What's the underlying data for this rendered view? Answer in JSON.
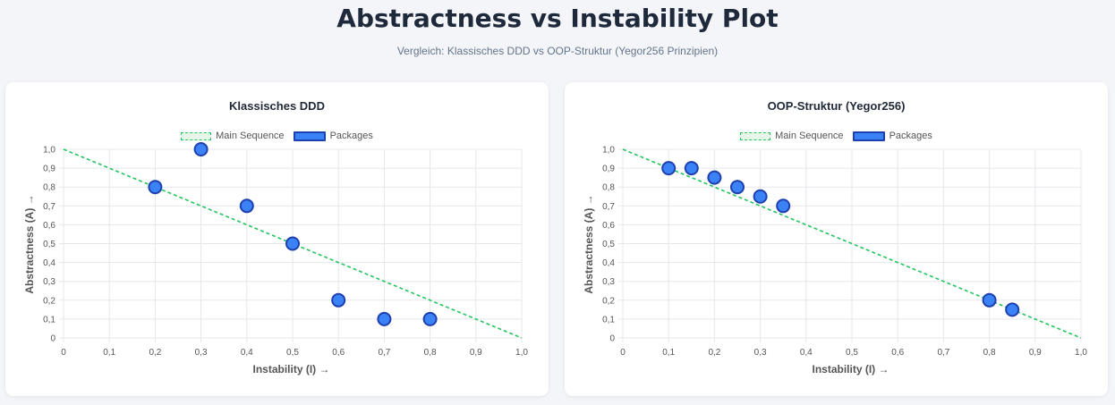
{
  "page": {
    "title": "Abstractness vs Instability Plot",
    "subtitle": "Vergleich: Klassisches DDD vs OOP-Struktur (Yegor256 Prinzipien)"
  },
  "colors": {
    "main_sequence": "#22c55e",
    "package_fill": "#3b82f6",
    "package_border": "#1e40af",
    "grid": "#e5e7eb"
  },
  "chart_data": [
    {
      "type": "scatter",
      "title": "Klassisches DDD",
      "xlabel": "Instability (I) →",
      "ylabel": "Abstractness (A) →",
      "xlim": [
        0,
        1
      ],
      "ylim": [
        0,
        1
      ],
      "x_ticks": [
        "0",
        "0,1",
        "0,2",
        "0,3",
        "0,4",
        "0,5",
        "0,6",
        "0,7",
        "0,8",
        "0,9",
        "1,0"
      ],
      "y_ticks": [
        "0",
        "0,1",
        "0,2",
        "0,3",
        "0,4",
        "0,5",
        "0,6",
        "0,7",
        "0,8",
        "0,9",
        "1,0"
      ],
      "grid": true,
      "legend_position": "top",
      "series": [
        {
          "name": "Main Sequence",
          "kind": "dashed-line",
          "x": [
            0,
            1
          ],
          "y": [
            1,
            0
          ]
        },
        {
          "name": "Packages",
          "kind": "points",
          "x": [
            0.2,
            0.3,
            0.4,
            0.5,
            0.6,
            0.7,
            0.8
          ],
          "y": [
            0.8,
            1.0,
            0.7,
            0.5,
            0.2,
            0.1,
            0.1
          ]
        }
      ]
    },
    {
      "type": "scatter",
      "title": "OOP-Struktur (Yegor256)",
      "xlabel": "Instability (I) →",
      "ylabel": "Abstractness (A) →",
      "xlim": [
        0,
        1
      ],
      "ylim": [
        0,
        1
      ],
      "x_ticks": [
        "0",
        "0,1",
        "0,2",
        "0,3",
        "0,4",
        "0,5",
        "0,6",
        "0,7",
        "0,8",
        "0,9",
        "1,0"
      ],
      "y_ticks": [
        "0",
        "0,1",
        "0,2",
        "0,3",
        "0,4",
        "0,5",
        "0,6",
        "0,7",
        "0,8",
        "0,9",
        "1,0"
      ],
      "grid": true,
      "legend_position": "top",
      "series": [
        {
          "name": "Main Sequence",
          "kind": "dashed-line",
          "x": [
            0,
            1
          ],
          "y": [
            1,
            0
          ]
        },
        {
          "name": "Packages",
          "kind": "points",
          "x": [
            0.1,
            0.15,
            0.2,
            0.25,
            0.3,
            0.35,
            0.8,
            0.85
          ],
          "y": [
            0.9,
            0.9,
            0.85,
            0.8,
            0.75,
            0.7,
            0.2,
            0.15
          ]
        }
      ]
    }
  ]
}
